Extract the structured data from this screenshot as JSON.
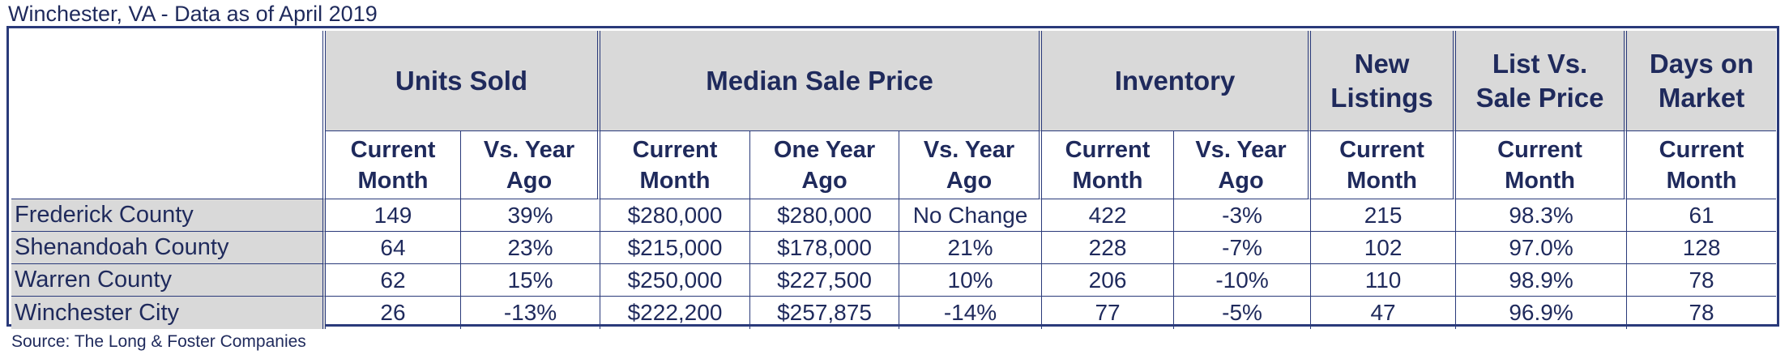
{
  "title": "Winchester, VA - Data as of April 2019",
  "source": "Source: The Long & Foster Companies",
  "table": {
    "groups": [
      "Units Sold",
      "Median Sale Price",
      "Inventory",
      "New Listings",
      "List Vs. Sale Price",
      "Days on Market"
    ],
    "subheaders": [
      "Current Month",
      "Vs. Year Ago",
      "Current Month",
      "One Year Ago",
      "Vs. Year Ago",
      "Current Month",
      "Vs. Year Ago",
      "Current Month",
      "Current Month",
      "Current Month"
    ],
    "rows": [
      {
        "name": "Frederick County",
        "cells": [
          "149",
          "39%",
          "$280,000",
          "$280,000",
          "No Change",
          "422",
          "-3%",
          "215",
          "98.3%",
          "61"
        ]
      },
      {
        "name": "Shenandoah County",
        "cells": [
          "64",
          "23%",
          "$215,000",
          "$178,000",
          "21%",
          "228",
          "-7%",
          "102",
          "97.0%",
          "128"
        ]
      },
      {
        "name": "Warren County",
        "cells": [
          "62",
          "15%",
          "$250,000",
          "$227,500",
          "10%",
          "206",
          "-10%",
          "110",
          "98.9%",
          "78"
        ]
      },
      {
        "name": "Winchester City",
        "cells": [
          "26",
          "-13%",
          "$222,200",
          "$257,875",
          "-14%",
          "77",
          "-5%",
          "47",
          "96.9%",
          "78"
        ]
      }
    ]
  }
}
